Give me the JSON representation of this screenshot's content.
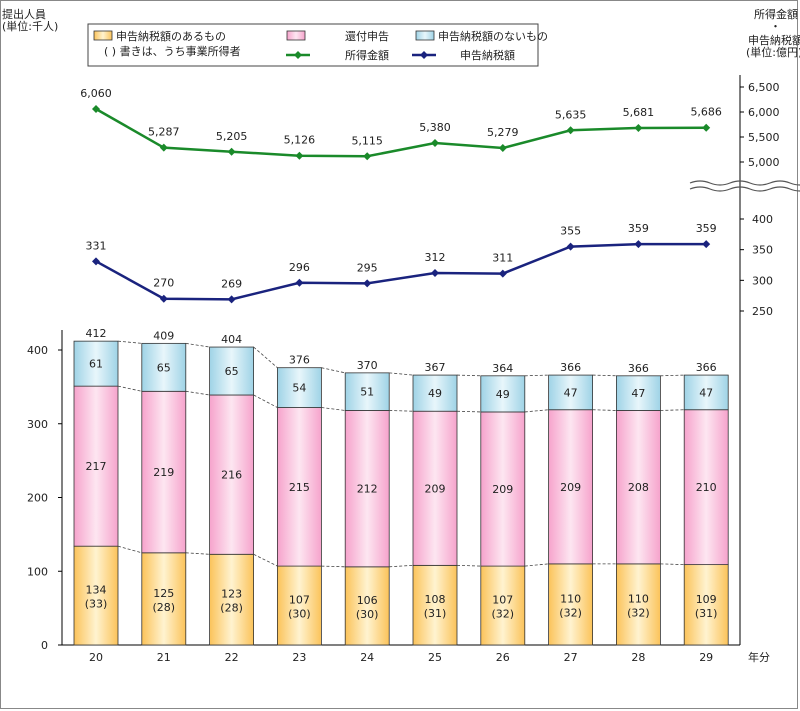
{
  "chart_data": {
    "type": "bar",
    "stacked": true,
    "categories": [
      "20",
      "21",
      "22",
      "23",
      "24",
      "25",
      "26",
      "27",
      "28",
      "29"
    ],
    "xlabel": "年分",
    "ylabel_left": "提出人員\n(単位:千人)",
    "ylabel_right_income": "所得金額",
    "ylabel_right_tax": "申告納税額\n(単位:億円)",
    "ylim_left": [
      0,
      400
    ],
    "yticks_left": [
      0,
      100,
      200,
      300,
      400
    ],
    "yticks_income": [
      5000,
      5500,
      6000,
      6500
    ],
    "yticks_tax": [
      250,
      300,
      350,
      400
    ],
    "series": [
      {
        "name": "申告納税額のあるもの",
        "kind": "bar",
        "color": "#fbc85c",
        "values": [
          134,
          125,
          123,
          107,
          106,
          108,
          107,
          110,
          110,
          109
        ],
        "sub_values": [
          "(33)",
          "(28)",
          "(28)",
          "(30)",
          "(30)",
          "(31)",
          "(32)",
          "(32)",
          "(32)",
          "(31)"
        ]
      },
      {
        "name": "還付申告",
        "kind": "bar",
        "color": "#f7a8d0",
        "values": [
          217,
          219,
          216,
          215,
          212,
          209,
          209,
          209,
          208,
          210
        ]
      },
      {
        "name": "申告納税額のないもの",
        "kind": "bar",
        "color": "#a8d8e8",
        "values": [
          61,
          65,
          65,
          54,
          51,
          49,
          49,
          47,
          47,
          47
        ]
      },
      {
        "name": "所得金額",
        "kind": "line",
        "color": "#1a8a2a",
        "values": [
          6060,
          5287,
          5205,
          5126,
          5115,
          5380,
          5279,
          5635,
          5681,
          5686
        ],
        "labels": [
          "6,060",
          "5,287",
          "5,205",
          "5,126",
          "5,115",
          "5,380",
          "5,279",
          "5,635",
          "5,681",
          "5,686"
        ]
      },
      {
        "name": "申告納税額",
        "kind": "line",
        "color": "#1a237e",
        "values": [
          331,
          270,
          269,
          296,
          295,
          312,
          311,
          355,
          359,
          359
        ]
      }
    ],
    "totals": [
      412,
      409,
      404,
      376,
      370,
      367,
      364,
      366,
      366,
      366
    ],
    "legend": {
      "placement": "top-left",
      "note": "( ) 書きは、うち事業所得者"
    },
    "grid": false
  }
}
